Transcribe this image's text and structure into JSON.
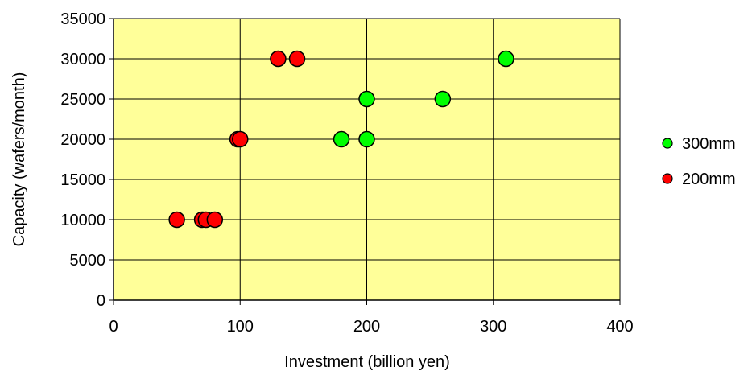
{
  "chart_data": {
    "type": "scatter",
    "title": "",
    "xlabel": "Investment (billion yen)",
    "ylabel": "Capacity (wafers/month)",
    "xlim": [
      0,
      400
    ],
    "ylim": [
      0,
      35000
    ],
    "x_ticks": [
      0,
      100,
      200,
      300,
      400
    ],
    "y_ticks": [
      0,
      5000,
      10000,
      15000,
      20000,
      25000,
      30000,
      35000
    ],
    "grid": true,
    "plot_background": "#ffff99",
    "legend_position": "right",
    "series": [
      {
        "name": "300mm",
        "color": "#00ff00",
        "points": [
          {
            "x": 180,
            "y": 20000
          },
          {
            "x": 200,
            "y": 20000
          },
          {
            "x": 200,
            "y": 25000
          },
          {
            "x": 260,
            "y": 25000
          },
          {
            "x": 310,
            "y": 30000
          }
        ]
      },
      {
        "name": "200mm",
        "color": "#ff0000",
        "points": [
          {
            "x": 50,
            "y": 10000
          },
          {
            "x": 70,
            "y": 10000
          },
          {
            "x": 73,
            "y": 10000
          },
          {
            "x": 80,
            "y": 10000
          },
          {
            "x": 98,
            "y": 20000
          },
          {
            "x": 100,
            "y": 20000
          },
          {
            "x": 130,
            "y": 30000
          },
          {
            "x": 145,
            "y": 30000
          }
        ]
      }
    ]
  }
}
